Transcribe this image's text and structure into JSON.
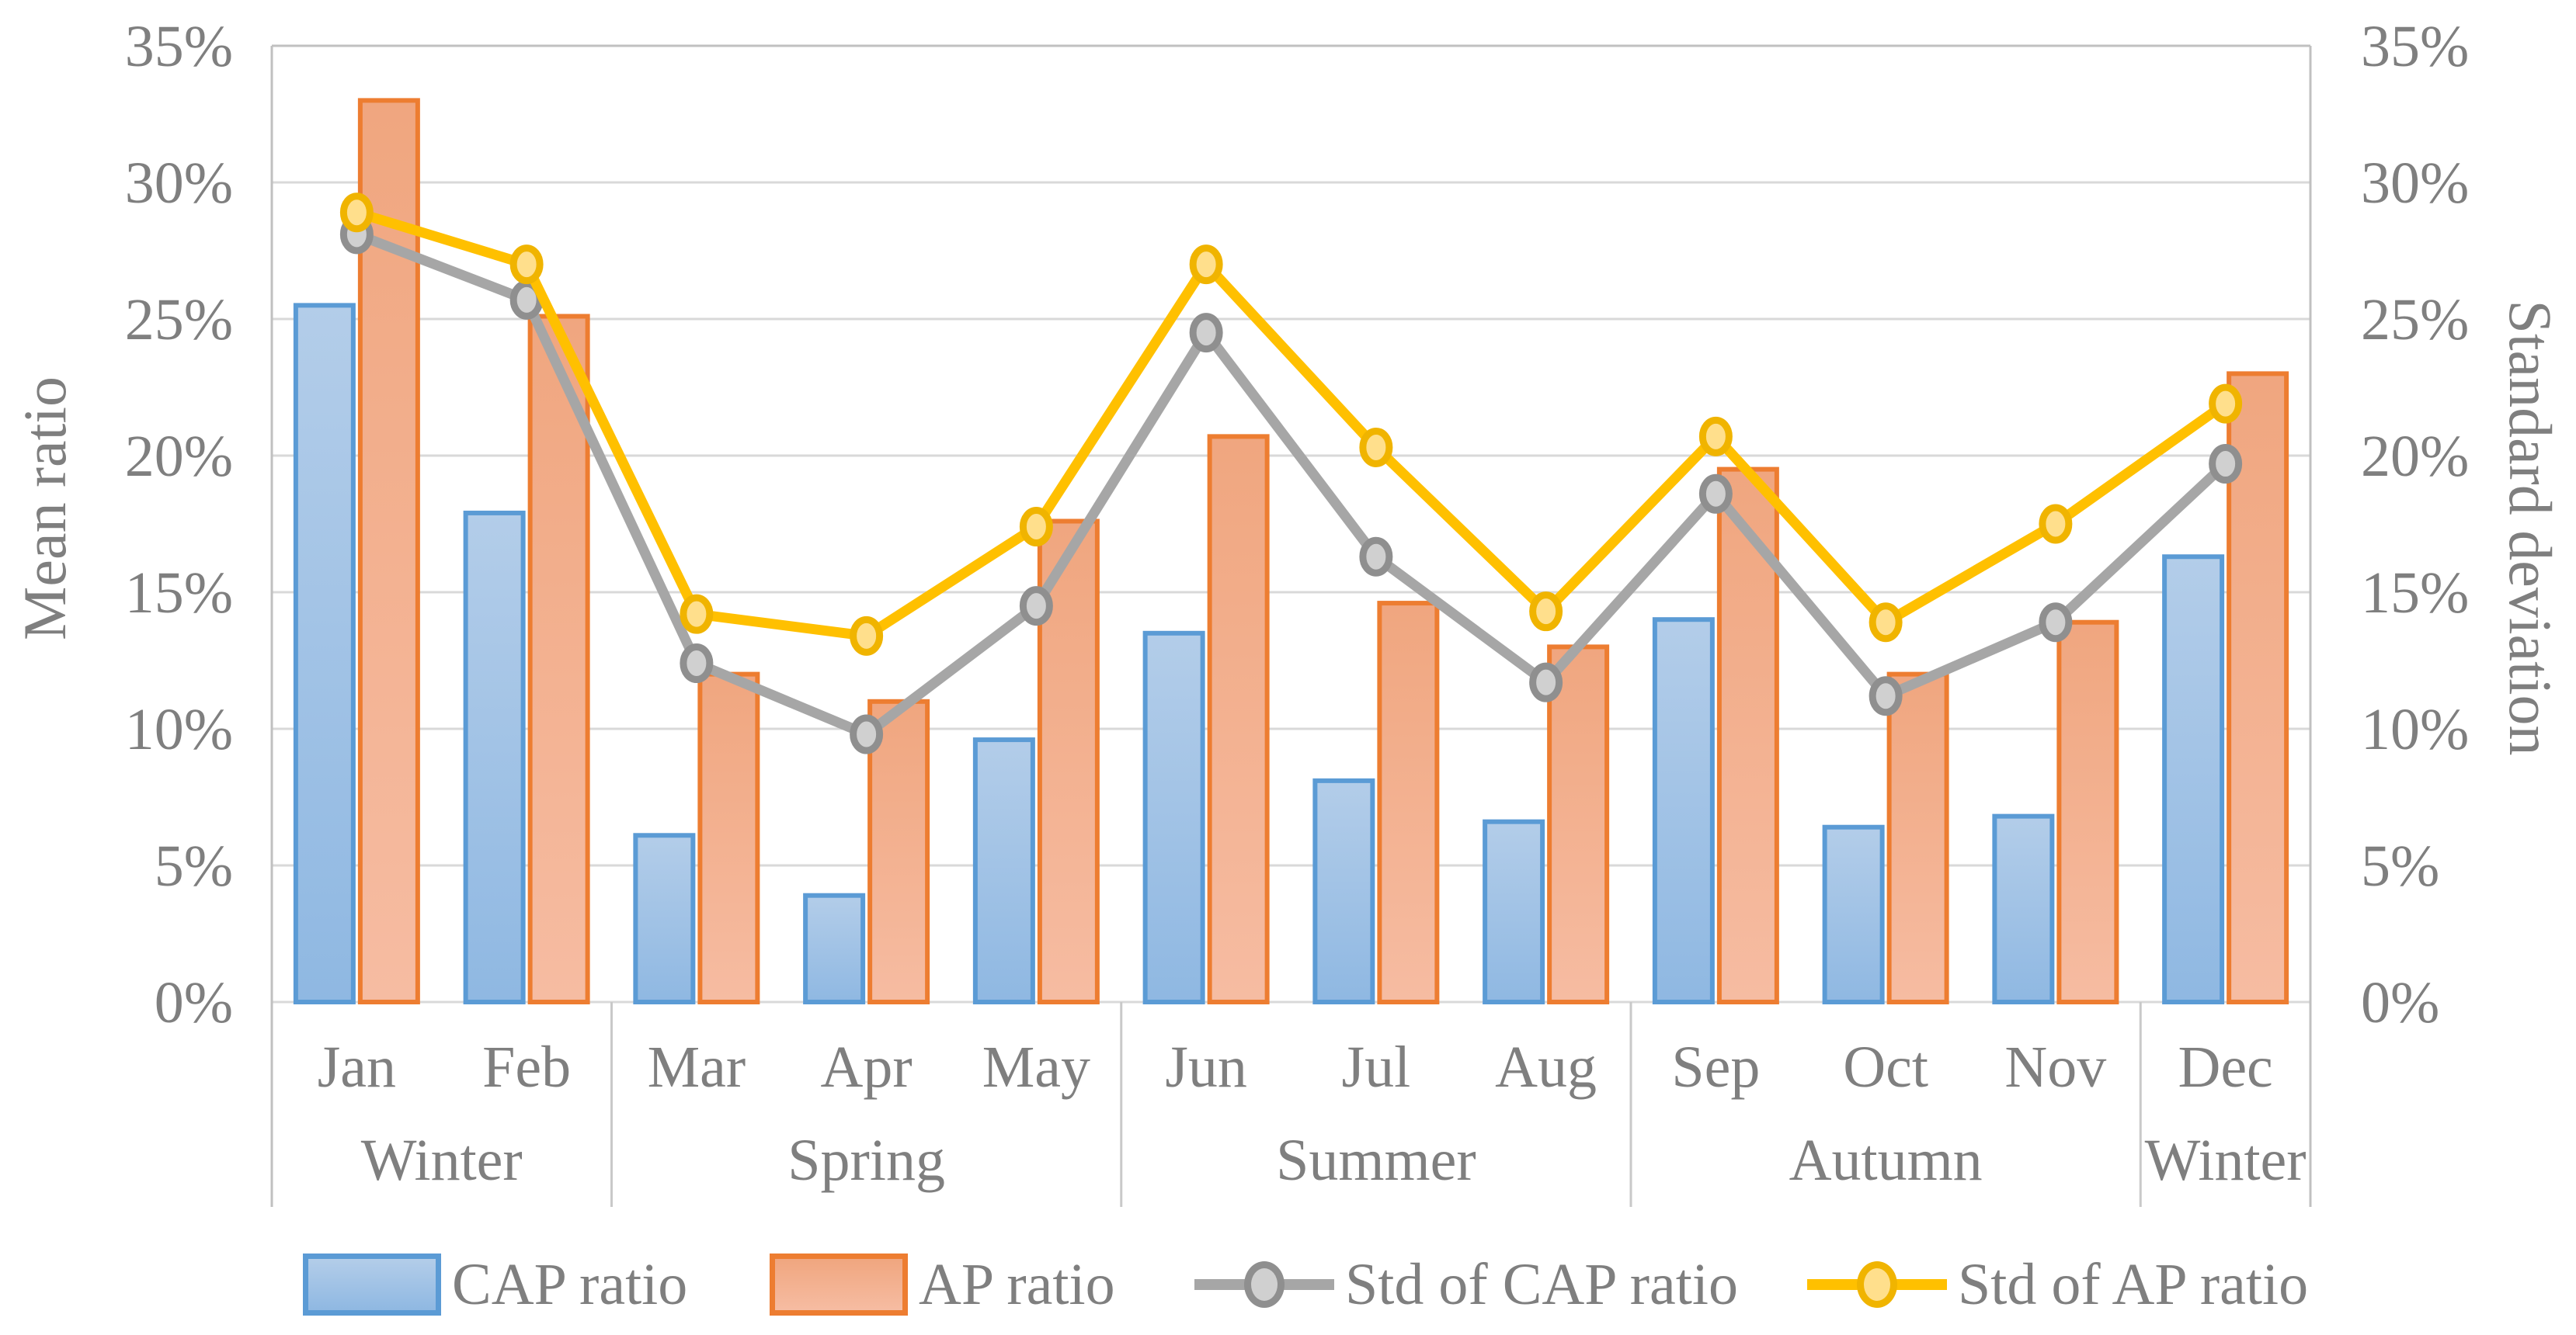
{
  "left_axis": {
    "title": "Mean ratio",
    "ticks": [
      "0%",
      "5%",
      "10%",
      "15%",
      "20%",
      "25%",
      "30%",
      "35%"
    ]
  },
  "right_axis": {
    "title": "Standard deviation",
    "ticks": [
      "0%",
      "5%",
      "10%",
      "15%",
      "20%",
      "25%",
      "30%",
      "35%"
    ]
  },
  "chart_data": {
    "type": "bar+line combo",
    "unit": "%",
    "ylim": [
      0,
      35
    ],
    "grid": "horizontal, every 5%",
    "legend_position": "bottom",
    "categories": [
      "Jan",
      "Feb",
      "Mar",
      "Apr",
      "May",
      "Jun",
      "Jul",
      "Aug",
      "Sep",
      "Oct",
      "Nov",
      "Dec"
    ],
    "season_groups": [
      {
        "label": "Winter",
        "start": 0,
        "count": 2
      },
      {
        "label": "Spring",
        "start": 2,
        "count": 3
      },
      {
        "label": "Summer",
        "start": 5,
        "count": 3
      },
      {
        "label": "Autumn",
        "start": 8,
        "count": 3
      },
      {
        "label": "Winter",
        "start": 11,
        "count": 1
      }
    ],
    "series": [
      {
        "name": "CAP ratio",
        "type": "bar",
        "border_color": "#5b9bd5",
        "fill_top": "#b3cde9",
        "fill_bottom": "#8fb8e2",
        "values": [
          25.5,
          17.9,
          6.1,
          3.9,
          9.6,
          13.5,
          8.1,
          6.6,
          14.0,
          6.4,
          6.8,
          16.3
        ]
      },
      {
        "name": "AP ratio",
        "type": "bar",
        "border_color": "#ed7d31",
        "fill_top": "#f0a67f",
        "fill_bottom": "#f6bca2",
        "values": [
          33.0,
          25.1,
          12.0,
          11.0,
          17.6,
          20.7,
          14.6,
          13.0,
          19.5,
          12.0,
          13.9,
          23.0
        ]
      },
      {
        "name": "Std of CAP ratio",
        "type": "line",
        "line_color": "#a6a6a6",
        "marker_fill": "#d0d0d0",
        "marker_stroke": "#8f8f8f",
        "values": [
          28.1,
          25.7,
          12.4,
          9.8,
          14.5,
          24.5,
          16.3,
          11.7,
          18.6,
          11.2,
          13.9,
          19.7
        ]
      },
      {
        "name": "Std of AP ratio",
        "type": "line",
        "line_color": "#ffc000",
        "marker_fill": "#ffdf8c",
        "marker_stroke": "#f0b400",
        "values": [
          28.9,
          27.0,
          14.2,
          13.4,
          17.4,
          27.0,
          20.3,
          14.3,
          20.7,
          13.9,
          17.5,
          21.9
        ]
      }
    ]
  },
  "legend": {
    "items": [
      {
        "label": "CAP ratio"
      },
      {
        "label": "AP ratio"
      },
      {
        "label": "Std of CAP ratio"
      },
      {
        "label": "Std of AP ratio"
      }
    ]
  },
  "colors": {
    "gridline": "#d9d9d9",
    "plot_border": "#c0c0c0",
    "category_separator": "#c9c9c9",
    "text": "#7f7f7f"
  }
}
